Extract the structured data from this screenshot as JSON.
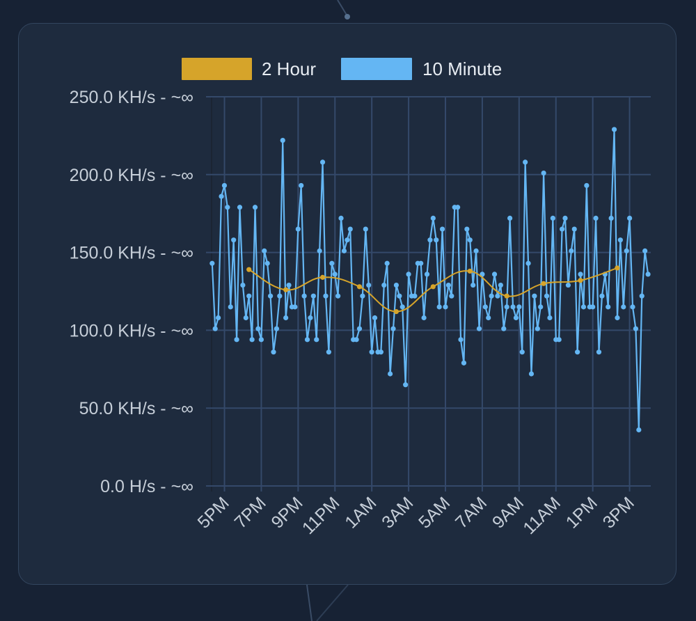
{
  "colors": {
    "background": "#172234",
    "card": "#1e2b3e",
    "grid": "#34496a",
    "two_hour": "#d6a42a",
    "ten_minute": "#64b6f3",
    "tick_text": "#c6ced8",
    "legend_text": "#e8edf3"
  },
  "chart_data": {
    "type": "line",
    "title": "",
    "xlabel": "",
    "ylabel": "",
    "ylim": [
      0,
      250
    ],
    "y_ticks": [
      {
        "value": 250,
        "label": "250.0 KH/s - ~∞"
      },
      {
        "value": 200,
        "label": "200.0 KH/s - ~∞"
      },
      {
        "value": 150,
        "label": "150.0 KH/s - ~∞"
      },
      {
        "value": 100,
        "label": "100.0 KH/s - ~∞"
      },
      {
        "value": 50,
        "label": "50.0 KH/s - ~∞"
      },
      {
        "value": 0,
        "label": "0.0 H/s - ~∞"
      }
    ],
    "x_unit": "hour",
    "x_range": [
      16.3,
      40.15
    ],
    "x_ticks": [
      {
        "value": 17,
        "label": "5PM"
      },
      {
        "value": 19,
        "label": "7PM"
      },
      {
        "value": 21,
        "label": "9PM"
      },
      {
        "value": 23,
        "label": "11PM"
      },
      {
        "value": 25,
        "label": "1AM"
      },
      {
        "value": 27,
        "label": "3AM"
      },
      {
        "value": 29,
        "label": "5AM"
      },
      {
        "value": 31,
        "label": "7AM"
      },
      {
        "value": 33,
        "label": "9AM"
      },
      {
        "value": 35,
        "label": "11AM"
      },
      {
        "value": 37,
        "label": "1PM"
      },
      {
        "value": 39,
        "label": "3PM"
      }
    ],
    "legend": {
      "position": "top-center"
    },
    "series": [
      {
        "name": "2 Hour",
        "color": "#d6a42a",
        "smooth": true,
        "x": [
          18.33,
          20.33,
          22.33,
          24.33,
          26.33,
          28.33,
          30.33,
          32.33,
          34.33,
          36.33,
          38.33
        ],
        "y": [
          139,
          126,
          134,
          128,
          112,
          128,
          138,
          122,
          130,
          132,
          140
        ]
      },
      {
        "name": "10 Minute",
        "color": "#64b6f3",
        "smooth": false,
        "x_start": 16.33,
        "x_step": 0.1667,
        "y": [
          143,
          101,
          108,
          186,
          193,
          179,
          115,
          158,
          94,
          179,
          129,
          108,
          122,
          94,
          179,
          101,
          94,
          151,
          143,
          122,
          86,
          101,
          122,
          222,
          108,
          129,
          115,
          115,
          165,
          193,
          122,
          94,
          108,
          122,
          94,
          151,
          208,
          122,
          86,
          143,
          136,
          122,
          172,
          151,
          158,
          165,
          94,
          94,
          101,
          122,
          165,
          129,
          86,
          108,
          86,
          86,
          129,
          143,
          72,
          101,
          129,
          122,
          115,
          65,
          136,
          122,
          122,
          143,
          143,
          108,
          136,
          158,
          172,
          158,
          115,
          165,
          115,
          129,
          122,
          179,
          179,
          94,
          79,
          165,
          158,
          129,
          151,
          101,
          136,
          115,
          108,
          122,
          136,
          122,
          129,
          101,
          115,
          172,
          115,
          108,
          115,
          86,
          208,
          143,
          72,
          122,
          101,
          115,
          201,
          122,
          108,
          172,
          94,
          94,
          165,
          172,
          129,
          151,
          165,
          86,
          136,
          115,
          193,
          115,
          115,
          172,
          86,
          122,
          136,
          115,
          172,
          229,
          108,
          158,
          115,
          151,
          172,
          115,
          101,
          36,
          122,
          151,
          136
        ]
      }
    ]
  }
}
